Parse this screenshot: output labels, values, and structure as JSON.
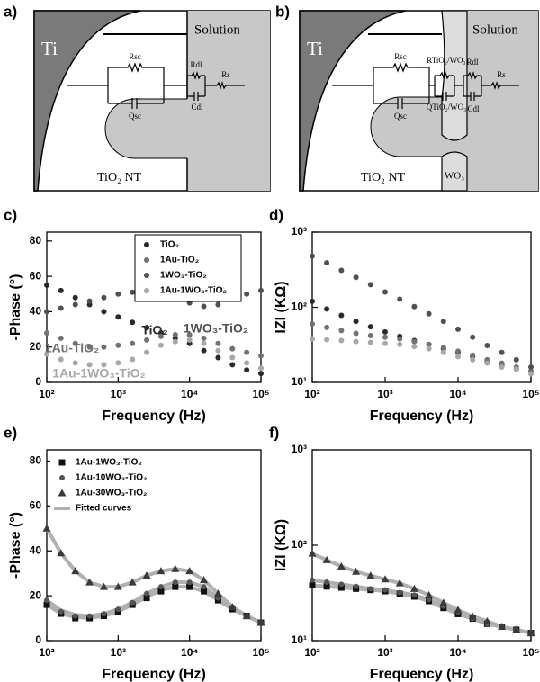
{
  "diagrams": [
    {
      "label": "a)",
      "ti": "Ti",
      "solution": "Solution",
      "nt": "TiO₂ NT",
      "rsc": "Rsc",
      "qsc": "Qsc",
      "rdl": "Rdl",
      "cdl": "Cdl",
      "rs": "Rs"
    },
    {
      "label": "b)",
      "ti": "Ti",
      "solution": "Solution",
      "nt": "TiO₂ NT",
      "wo3": "WO₃",
      "rsc": "Rsc",
      "qsc": "Qsc",
      "rlayer": "RTiO₂/WO₃",
      "qlayer": "QTiO₂/WO₃",
      "rdl": "Rdl",
      "cdl": "Cdl",
      "rs": "Rs"
    }
  ],
  "chart_data": [
    {
      "type": "scatter",
      "label": "c)",
      "xlabel": "Frequency (Hz)",
      "ylabel": "-Phase (°)",
      "log_x": true,
      "legend": "upper right",
      "x": [
        100,
        158,
        251,
        398,
        631,
        1000,
        1585,
        2512,
        3981,
        6310,
        10000,
        15849,
        25119,
        39811,
        63096,
        100000
      ],
      "xlim": [
        100,
        100000
      ],
      "xticks": [
        {
          "value": 100,
          "label": "10²"
        },
        {
          "value": 1000,
          "label": "10³"
        },
        {
          "value": 10000,
          "label": "10⁴"
        },
        {
          "value": 100000,
          "label": "10⁵"
        }
      ],
      "ylim": [
        0,
        85
      ],
      "yticks": [
        0,
        20,
        40,
        60,
        80
      ],
      "series": [
        {
          "name": "TiO₂",
          "color": "#2a2a2a",
          "marker": "circle",
          "values": [
            55,
            52,
            48,
            44,
            40,
            37,
            34,
            31,
            28,
            25,
            22,
            18,
            14,
            10,
            7,
            5
          ]
        },
        {
          "name": "1Au-TiO₂",
          "color": "#727272",
          "marker": "circle",
          "values": [
            28,
            25,
            22,
            20,
            20,
            21,
            22,
            24,
            26,
            27,
            27,
            25,
            22,
            19,
            17,
            15
          ]
        },
        {
          "name": "1WO₃-TiO₂",
          "color": "#505050",
          "marker": "circle",
          "values": [
            40,
            42,
            44,
            46,
            48,
            50,
            51,
            51,
            50,
            48,
            45,
            43,
            44,
            47,
            50,
            52
          ]
        },
        {
          "name": "1Au-1WO₃-TiO₂",
          "color": "#a8a8a8",
          "marker": "circle",
          "values": [
            16,
            13,
            11,
            10,
            10,
            11,
            13,
            17,
            21,
            23,
            24,
            22,
            18,
            14,
            11,
            8
          ]
        }
      ],
      "annotations": [
        {
          "text": "TiO₂",
          "color": "#2a2a2a"
        },
        {
          "text": "1Au-TiO₂",
          "color": "#727272"
        },
        {
          "text": "1WO₃-TiO₂",
          "color": "#505050"
        },
        {
          "text": "1Au-1WO₃-TiO₂",
          "color": "#a8a8a8"
        }
      ]
    },
    {
      "type": "scatter",
      "label": "d)",
      "xlabel": "Frequency (Hz)",
      "ylabel": "IZI (KΩ)",
      "log_x": true,
      "log_y": true,
      "x": [
        100,
        158,
        251,
        398,
        631,
        1000,
        1585,
        2512,
        3981,
        6310,
        10000,
        15849,
        25119,
        39811,
        63096,
        100000
      ],
      "xlim": [
        100,
        100000
      ],
      "xticks": [
        {
          "value": 100,
          "label": "10²"
        },
        {
          "value": 1000,
          "label": "10³"
        },
        {
          "value": 10000,
          "label": "10⁴"
        },
        {
          "value": 100000,
          "label": "10⁵"
        }
      ],
      "ylim": [
        10,
        1000
      ],
      "yticks": [
        {
          "value": 10,
          "label": "10¹"
        },
        {
          "value": 100,
          "label": "10²"
        },
        {
          "value": 1000,
          "label": "10³"
        }
      ],
      "series": [
        {
          "color": "#2a2a2a",
          "marker": "circle",
          "values": [
            120,
            95,
            78,
            65,
            55,
            47,
            41,
            36,
            32,
            28,
            25,
            22,
            19,
            17,
            15,
            14
          ]
        },
        {
          "color": "#727272",
          "marker": "circle",
          "values": [
            60,
            54,
            49,
            45,
            42,
            40,
            38,
            35,
            32,
            29,
            26,
            23,
            20,
            18,
            16,
            14
          ]
        },
        {
          "color": "#505050",
          "marker": "circle",
          "values": [
            480,
            390,
            310,
            250,
            200,
            160,
            128,
            102,
            82,
            65,
            51,
            40,
            31,
            25,
            20,
            16
          ]
        },
        {
          "color": "#a8a8a8",
          "marker": "circle",
          "values": [
            38,
            37,
            36,
            35,
            34,
            33,
            32,
            30,
            28,
            25,
            22,
            20,
            18,
            16,
            15,
            13
          ]
        }
      ]
    },
    {
      "type": "scatter",
      "label": "e)",
      "xlabel": "Frequency (Hz)",
      "ylabel": "-Phase (°)",
      "log_x": true,
      "legend": "upper left",
      "x": [
        100,
        158,
        251,
        398,
        631,
        1000,
        1585,
        2512,
        3981,
        6310,
        10000,
        15849,
        25119,
        39811,
        63096,
        100000
      ],
      "xlim": [
        100,
        100000
      ],
      "xticks": [
        {
          "value": 100,
          "label": "10²"
        },
        {
          "value": 1000,
          "label": "10³"
        },
        {
          "value": 10000,
          "label": "10⁴"
        },
        {
          "value": 100000,
          "label": "10⁵"
        }
      ],
      "ylim": [
        0,
        85
      ],
      "yticks": [
        0,
        20,
        40,
        60,
        80
      ],
      "series": [
        {
          "name": "Fitted curves",
          "color": "#b0b0b0",
          "line": true,
          "values": [
            16,
            12,
            10.5,
            10,
            11,
            13,
            16,
            19.5,
            22.5,
            24,
            24,
            22,
            18,
            14,
            11,
            8
          ]
        },
        {
          "color": "#b0b0b0",
          "line": true,
          "values": [
            18,
            13.5,
            11.5,
            11,
            12,
            14,
            17,
            21,
            24,
            26,
            26,
            24,
            19,
            15,
            11,
            8
          ]
        },
        {
          "color": "#b0b0b0",
          "line": true,
          "values": [
            50,
            39,
            31,
            26,
            24,
            24,
            26,
            29,
            31,
            32,
            31,
            27,
            21,
            15,
            11,
            8
          ]
        },
        {
          "name": "1Au-1WO₃-TiO₂",
          "color": "#111111",
          "marker": "square",
          "values": [
            16,
            12,
            10,
            10,
            11,
            13,
            16,
            19,
            22,
            24,
            24,
            22,
            18,
            14,
            11,
            8
          ]
        },
        {
          "name": "1Au-10WO₃-TiO₂",
          "color": "#555555",
          "marker": "circle",
          "values": [
            18,
            13,
            11,
            11,
            12,
            14,
            17,
            21,
            24,
            26,
            26,
            24,
            19,
            15,
            11,
            8
          ]
        },
        {
          "name": "1Au-30WO₃-TiO₂",
          "color": "#3a3a3a",
          "marker": "triangle",
          "values": [
            50,
            39,
            31,
            26,
            24,
            24,
            26,
            29,
            31,
            32,
            31,
            27,
            21,
            15,
            11,
            8
          ]
        }
      ]
    },
    {
      "type": "scatter",
      "label": "f)",
      "xlabel": "Frequency (Hz)",
      "ylabel": "IZI (KΩ)",
      "log_x": true,
      "log_y": true,
      "x": [
        100,
        158,
        251,
        398,
        631,
        1000,
        1585,
        2512,
        3981,
        6310,
        10000,
        15849,
        25119,
        39811,
        63096,
        100000
      ],
      "xlim": [
        100,
        100000
      ],
      "xticks": [
        {
          "value": 100,
          "label": "10²"
        },
        {
          "value": 1000,
          "label": "10³"
        },
        {
          "value": 10000,
          "label": "10⁴"
        },
        {
          "value": 100000,
          "label": "10⁵"
        }
      ],
      "ylim": [
        10,
        1000
      ],
      "yticks": [
        {
          "value": 10,
          "label": "10¹"
        },
        {
          "value": 100,
          "label": "10²"
        },
        {
          "value": 1000,
          "label": "10³"
        }
      ],
      "series": [
        {
          "color": "#b0b0b0",
          "line": true,
          "values": [
            38,
            37,
            36,
            35,
            34,
            33,
            31,
            29,
            26,
            22,
            19,
            17,
            15,
            14,
            13,
            12
          ]
        },
        {
          "color": "#b0b0b0",
          "line": true,
          "values": [
            43,
            41,
            39,
            37,
            35,
            34,
            32,
            30,
            27,
            23,
            20,
            17,
            15,
            14,
            13,
            12
          ]
        },
        {
          "color": "#b0b0b0",
          "line": true,
          "values": [
            82,
            70,
            60,
            53,
            48,
            44,
            40,
            35,
            30,
            25,
            21,
            18,
            16,
            14,
            13,
            12
          ]
        },
        {
          "color": "#111111",
          "marker": "square",
          "values": [
            38,
            37,
            36,
            35,
            34,
            33,
            31,
            29,
            26,
            22,
            19,
            17,
            15,
            14,
            13,
            12
          ]
        },
        {
          "color": "#555555",
          "marker": "circle",
          "values": [
            43,
            41,
            39,
            37,
            35,
            34,
            32,
            30,
            27,
            23,
            20,
            17,
            15,
            14,
            13,
            12
          ]
        },
        {
          "color": "#3a3a3a",
          "marker": "triangle",
          "values": [
            82,
            70,
            60,
            53,
            48,
            44,
            40,
            35,
            30,
            25,
            21,
            18,
            16,
            14,
            13,
            12
          ]
        }
      ]
    }
  ]
}
